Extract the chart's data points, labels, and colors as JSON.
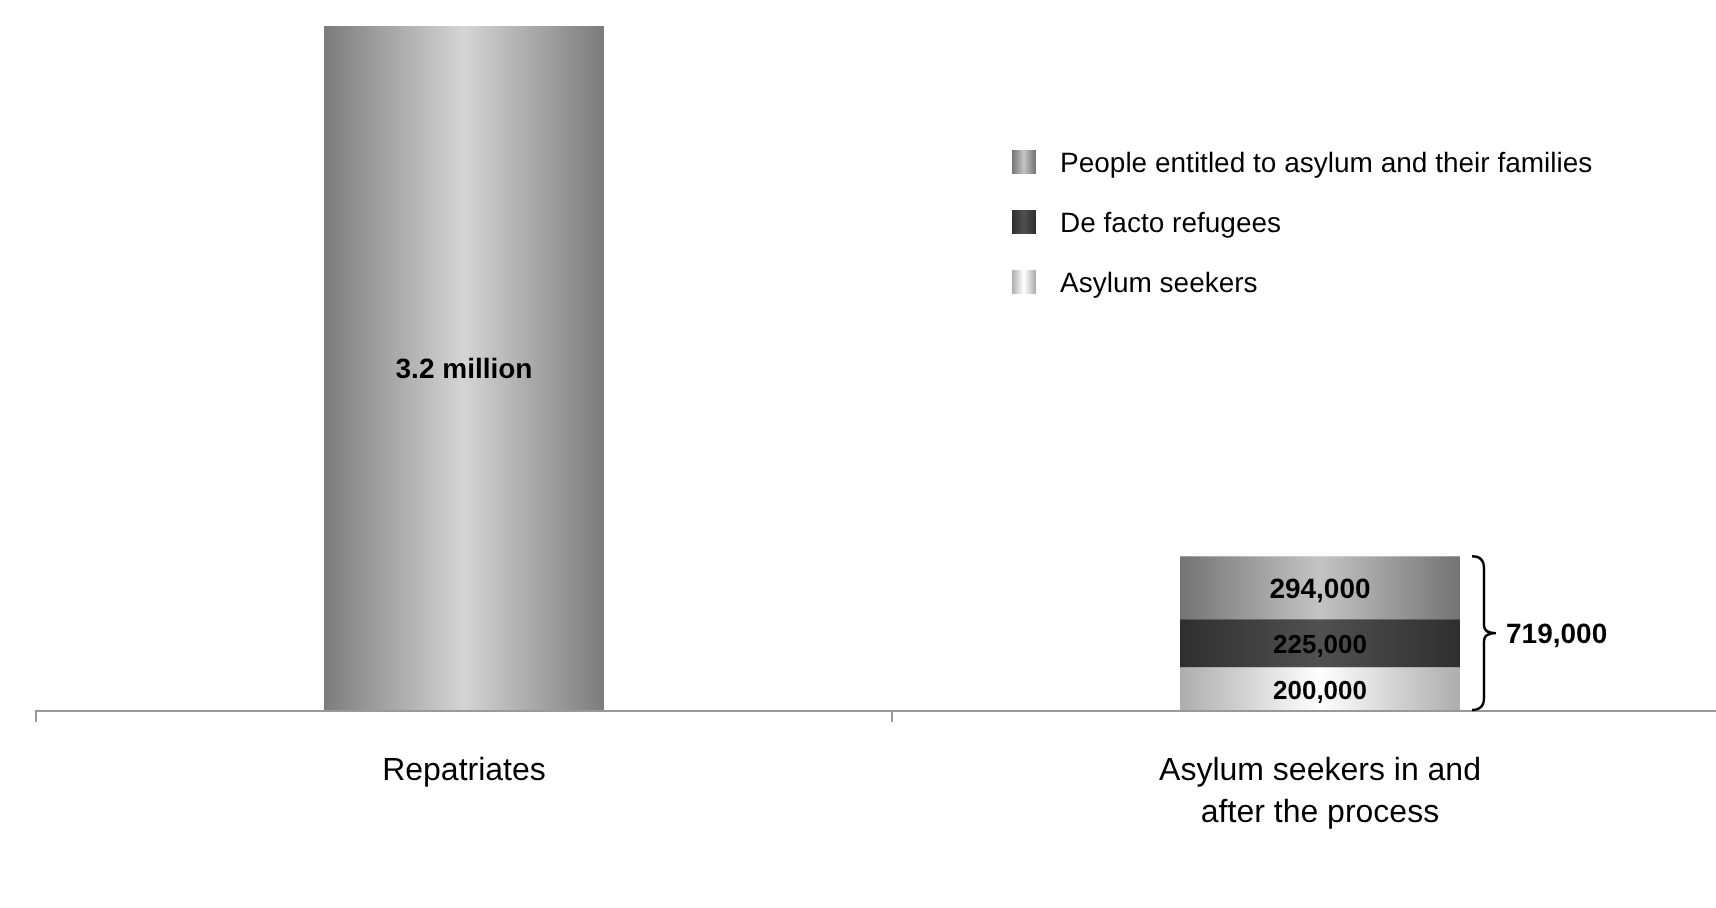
{
  "chart_data": {
    "type": "bar",
    "stacked": true,
    "categories": [
      "Repatriates",
      "Asylum seekers in and after the process"
    ],
    "series": [
      {
        "color": "#9a9a9a",
        "values": [
          3200000,
          null
        ],
        "value_labels": [
          "3.2 million",
          null
        ]
      },
      {
        "name": "Asylum seekers",
        "color": "#d6d6d6",
        "values": [
          null,
          200000
        ],
        "value_labels": [
          null,
          "200,000"
        ]
      },
      {
        "name": "De facto refugees",
        "color": "#3a3a3a",
        "values": [
          null,
          225000
        ],
        "value_labels": [
          null,
          "225,000"
        ]
      },
      {
        "name": "People entitled to asylum and their families",
        "color": "#8e8e8e",
        "values": [
          null,
          294000
        ],
        "value_labels": [
          null,
          "294,000"
        ]
      }
    ],
    "totals": [
      null,
      "719,000"
    ],
    "legend": "top right",
    "grid": false
  }
}
